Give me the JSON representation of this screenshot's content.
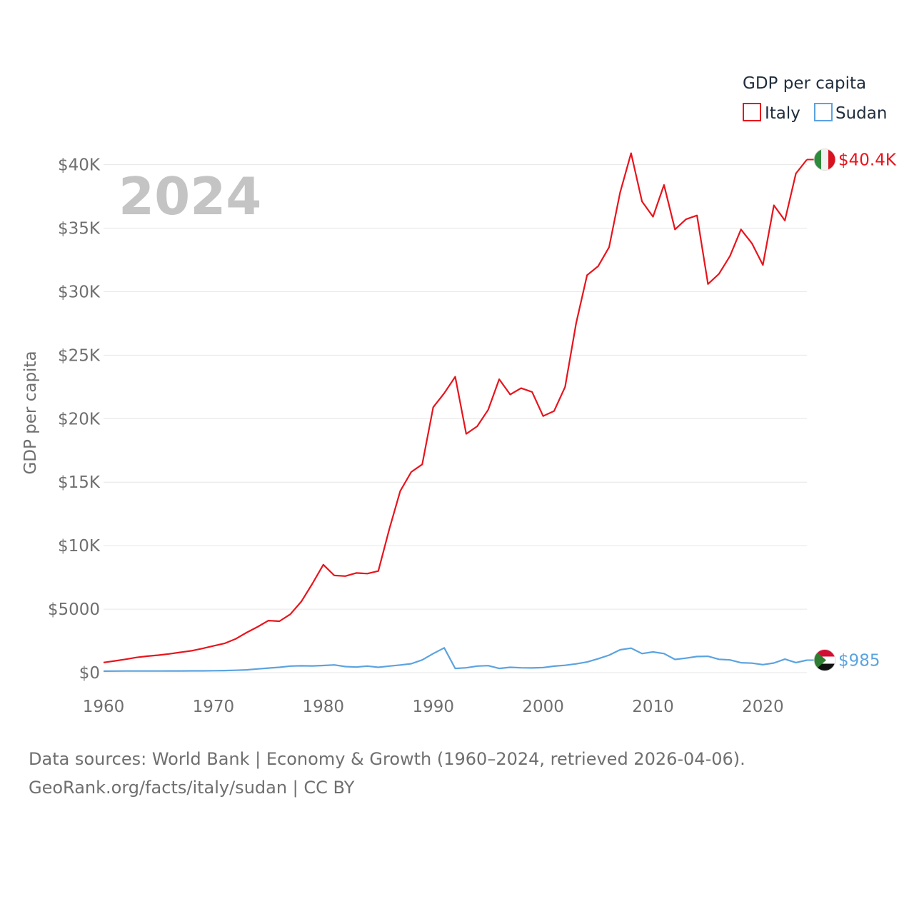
{
  "chart_data": {
    "type": "line",
    "year_label": "2024",
    "ylabel": "GDP per capita",
    "legend": {
      "title": "GDP per capita",
      "position": "top-right"
    },
    "xlim": [
      1960,
      2024
    ],
    "ylim": [
      0,
      42000
    ],
    "x_ticks": [
      "1960",
      "1970",
      "1980",
      "1990",
      "2000",
      "2010",
      "2020"
    ],
    "y_ticks": [
      {
        "value": 0,
        "label": "$0"
      },
      {
        "value": 5000,
        "label": "$5000"
      },
      {
        "value": 10000,
        "label": "$10K"
      },
      {
        "value": 15000,
        "label": "$15K"
      },
      {
        "value": 20000,
        "label": "$20K"
      },
      {
        "value": 25000,
        "label": "$25K"
      },
      {
        "value": 30000,
        "label": "$30K"
      },
      {
        "value": 35000,
        "label": "$35K"
      },
      {
        "value": 40000,
        "label": "$40K"
      }
    ],
    "x": [
      1960,
      1961,
      1962,
      1963,
      1964,
      1965,
      1966,
      1967,
      1968,
      1969,
      1970,
      1971,
      1972,
      1973,
      1974,
      1975,
      1976,
      1977,
      1978,
      1979,
      1980,
      1981,
      1982,
      1983,
      1984,
      1985,
      1986,
      1987,
      1988,
      1989,
      1990,
      1991,
      1992,
      1993,
      1994,
      1995,
      1996,
      1997,
      1998,
      1999,
      2000,
      2001,
      2002,
      2003,
      2004,
      2005,
      2006,
      2007,
      2008,
      2009,
      2010,
      2011,
      2012,
      2013,
      2014,
      2015,
      2016,
      2017,
      2018,
      2019,
      2020,
      2021,
      2022,
      2023,
      2024
    ],
    "series": [
      {
        "name": "Italy",
        "color": "#e8141c",
        "end_label": "$40.4K",
        "flag": "italy-flag-icon",
        "values": [
          800,
          920,
          1050,
          1200,
          1300,
          1380,
          1480,
          1600,
          1720,
          1900,
          2100,
          2300,
          2650,
          3150,
          3600,
          4100,
          4050,
          4600,
          5600,
          7000,
          8500,
          7650,
          7600,
          7850,
          7800,
          8000,
          11300,
          14300,
          15800,
          16400,
          20900,
          22000,
          23300,
          18800,
          19400,
          20700,
          23100,
          21900,
          22400,
          22100,
          20200,
          20600,
          22500,
          27500,
          31300,
          32000,
          33500,
          37800,
          40900,
          37100,
          35900,
          38400,
          34900,
          35700,
          36000,
          30600,
          31400,
          32800,
          34900,
          33800,
          32100,
          36800,
          35600,
          39300,
          40400
        ]
      },
      {
        "name": "Sudan",
        "color": "#5ba3e0",
        "end_label": "$985",
        "flag": "sudan-flag-icon",
        "values": [
          120,
          125,
          128,
          130,
          132,
          132,
          133,
          135,
          138,
          142,
          150,
          165,
          185,
          220,
          290,
          360,
          420,
          520,
          540,
          530,
          560,
          610,
          480,
          440,
          520,
          420,
          520,
          600,
          700,
          1000,
          1500,
          1950,
          330,
          380,
          520,
          550,
          330,
          420,
          380,
          370,
          400,
          510,
          580,
          690,
          840,
          1090,
          1380,
          1800,
          1930,
          1500,
          1630,
          1500,
          1040,
          1140,
          1270,
          1290,
          1050,
          1000,
          780,
          750,
          630,
          760,
          1060,
          790,
          985
        ]
      }
    ]
  },
  "footer": {
    "line1": "Data sources: World Bank | Economy & Growth (1960–2024, retrieved 2026-04-06).",
    "line2": "GeoRank.org/facts/italy/sudan | CC BY"
  }
}
